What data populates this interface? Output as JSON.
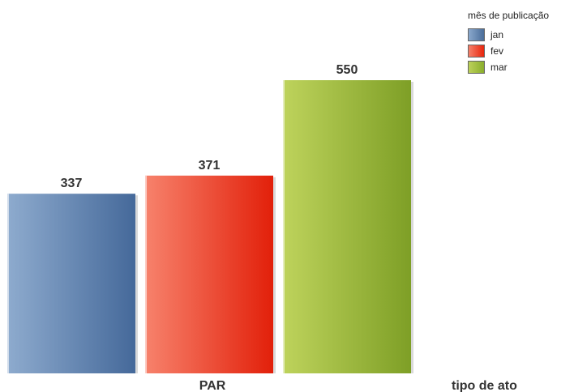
{
  "chart_data": {
    "type": "bar",
    "categories": [
      "PAR"
    ],
    "series": [
      {
        "name": "jan",
        "values": [
          337
        ],
        "color": "#4a6d9a"
      },
      {
        "name": "fev",
        "values": [
          371
        ],
        "color": "#e8250c"
      },
      {
        "name": "mar",
        "values": [
          550
        ],
        "color": "#8aad2c"
      }
    ],
    "xlabel": "tipo de ato",
    "ylabel": "",
    "title": "",
    "ylim": [
      0,
      600
    ],
    "grid": false,
    "legend": {
      "title": "mês de publicação",
      "placement": "top-right"
    }
  }
}
